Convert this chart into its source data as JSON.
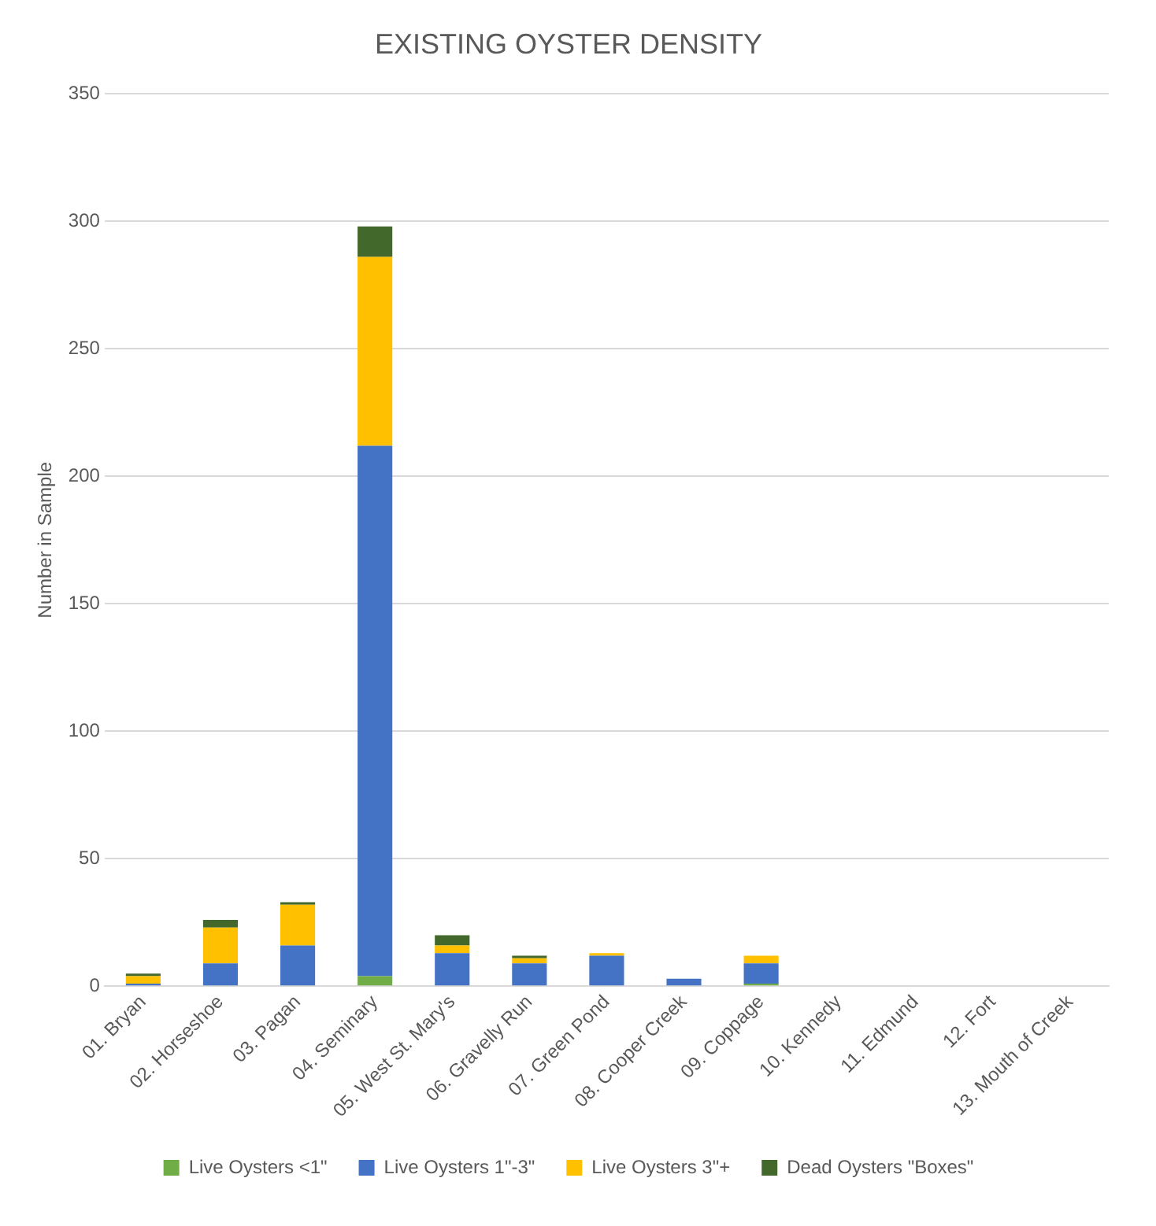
{
  "chart_data": {
    "type": "bar",
    "title": "EXISTING OYSTER DENSITY",
    "ylabel": "Number in Sample",
    "stacked": true,
    "grid": "y",
    "legend": "bottom",
    "categories": [
      "01. Bryan",
      "02. Horseshoe",
      "03. Pagan",
      "04. Seminary",
      "05. West St. Mary's",
      "06. Gravelly Run",
      "07. Green Pond",
      "08. Cooper Creek",
      "09. Coppage",
      "10. Kennedy",
      "11. Edmund",
      "12. Fort",
      "13. Mouth of Creek"
    ],
    "ylim": [
      0,
      350
    ],
    "yticks": [
      0,
      50,
      100,
      150,
      200,
      250,
      300,
      350
    ],
    "series": [
      {
        "name": "Live Oysters <1\"",
        "color": "#70ad47",
        "values": [
          0,
          0,
          0,
          4,
          0,
          0,
          0,
          0,
          1,
          0,
          0,
          0,
          0
        ]
      },
      {
        "name": "Live Oysters 1\"-3\"",
        "color": "#4472c4",
        "values": [
          1,
          9,
          16,
          208,
          13,
          9,
          12,
          3,
          8,
          0,
          0,
          0,
          0
        ]
      },
      {
        "name": "Live Oysters 3\"+",
        "color": "#ffc000",
        "values": [
          3,
          14,
          16,
          74,
          3,
          2,
          1,
          0,
          3,
          0,
          0,
          0,
          0
        ]
      },
      {
        "name": "Dead Oysters \"Boxes\"",
        "color": "#43682b",
        "values": [
          1,
          3,
          1,
          12,
          4,
          1,
          0,
          0,
          0,
          0,
          0,
          0,
          0
        ]
      }
    ]
  }
}
